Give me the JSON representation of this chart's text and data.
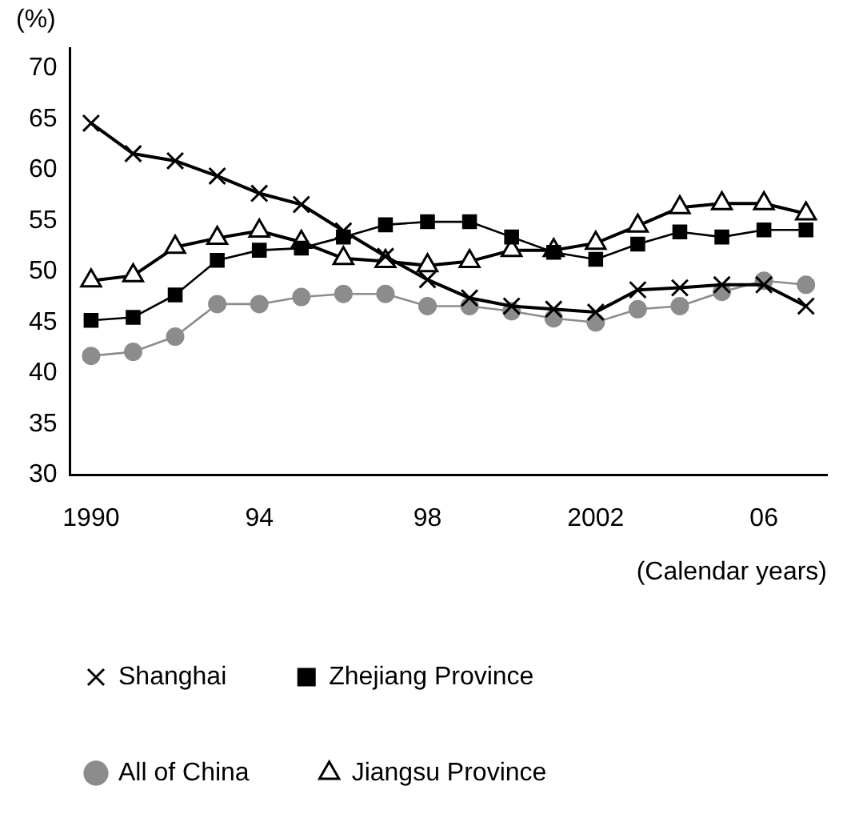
{
  "chart_data": {
    "type": "line",
    "ylabel": "(%)",
    "xlabel": "(Calendar years)",
    "x": [
      1990,
      1991,
      1992,
      1993,
      1994,
      1995,
      1996,
      1997,
      1998,
      1999,
      2000,
      2001,
      2002,
      2003,
      2004,
      2005,
      2006,
      2007
    ],
    "xlim": [
      1989.5,
      2007.5
    ],
    "xticks": [
      1990,
      {
        "value": 1994,
        "label": "94"
      },
      {
        "value": 1998,
        "label": "98"
      },
      2002,
      {
        "value": 2006,
        "label": "06"
      }
    ],
    "ylim": [
      30,
      72
    ],
    "yticks": [
      30,
      35,
      40,
      45,
      50,
      55,
      60,
      65,
      70
    ],
    "grid": false,
    "legend": "bottom",
    "series": [
      {
        "name": "Shanghai",
        "color": "#000000",
        "marker": "cross",
        "values": [
          64.6,
          61.6,
          60.9,
          59.4,
          57.7,
          56.6,
          54.0,
          51.5,
          49.2,
          47.4,
          46.6,
          46.3,
          46.0,
          48.2,
          48.4,
          48.7,
          48.7,
          46.6
        ]
      },
      {
        "name": "Jiangsu Province",
        "color": "#000000",
        "marker": "triangle",
        "values": [
          49.1,
          49.6,
          52.4,
          53.3,
          54.0,
          52.9,
          51.3,
          51.0,
          50.6,
          51.0,
          52.1,
          52.1,
          52.8,
          54.5,
          56.3,
          56.7,
          56.7,
          55.7
        ]
      },
      {
        "name": "Zhejiang Province",
        "color": "#000000",
        "marker": "square",
        "values": [
          45.2,
          45.5,
          47.7,
          51.1,
          52.1,
          52.3,
          53.4,
          54.6,
          54.9,
          54.9,
          53.4,
          51.9,
          51.2,
          52.7,
          53.9,
          53.4,
          54.1,
          54.1
        ]
      },
      {
        "name": "All of China",
        "color": "#8c8c8c",
        "marker": "circle",
        "values": [
          41.7,
          42.1,
          43.6,
          46.8,
          46.8,
          47.5,
          47.8,
          47.8,
          46.6,
          46.6,
          46.1,
          45.4,
          45.0,
          46.3,
          46.6,
          48.0,
          49.1,
          48.7
        ]
      }
    ]
  }
}
